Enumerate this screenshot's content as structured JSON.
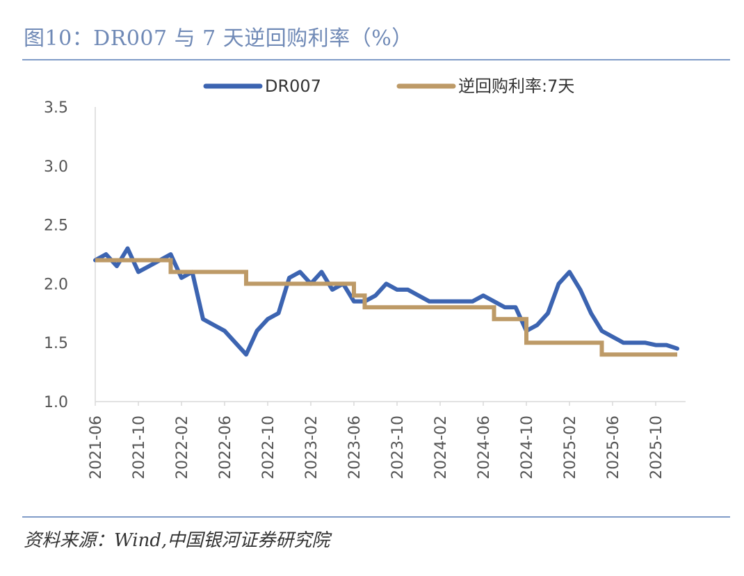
{
  "header": {
    "title": "图10：DR007 与 7 天逆回购利率（%）"
  },
  "footer": {
    "source": "资料来源：Wind,中国银河证券研究院"
  },
  "colors": {
    "dr007": "#3c64b1",
    "reverse_repo": "#bd9a67",
    "axis": "#d9d9d9",
    "rule": "#7f9bc7"
  },
  "chart_data": {
    "type": "line",
    "title": "",
    "xlabel": "",
    "ylabel": "",
    "ylim": [
      1.0,
      3.5
    ],
    "yticks": [
      "1.0",
      "1.5",
      "2.0",
      "2.5",
      "3.0",
      "3.5"
    ],
    "xticks": [
      "2021-06",
      "2021-10",
      "2022-02",
      "2022-06",
      "2022-10",
      "2023-02",
      "2023-06",
      "2023-10",
      "2024-02",
      "2024-06",
      "2024-10",
      "2025-02",
      "2025-06",
      "2025-10"
    ],
    "grid": false,
    "legend_position": "top",
    "series": [
      {
        "name": "DR007",
        "x": [
          "2021-06",
          "2021-07",
          "2021-08",
          "2021-09",
          "2021-10",
          "2021-11",
          "2021-12",
          "2022-01",
          "2022-02",
          "2022-03",
          "2022-04",
          "2022-05",
          "2022-06",
          "2022-07",
          "2022-08",
          "2022-09",
          "2022-10",
          "2022-11",
          "2022-12",
          "2023-01",
          "2023-02",
          "2023-03",
          "2023-04",
          "2023-05",
          "2023-06",
          "2023-07",
          "2023-08",
          "2023-09",
          "2023-10",
          "2023-11",
          "2023-12",
          "2024-01",
          "2024-02",
          "2024-03",
          "2024-04",
          "2024-05",
          "2024-06",
          "2024-07",
          "2024-08",
          "2024-09",
          "2024-10",
          "2024-11",
          "2024-12",
          "2025-01",
          "2025-02",
          "2025-03",
          "2025-04",
          "2025-05",
          "2025-06",
          "2025-07",
          "2025-08",
          "2025-09",
          "2025-10",
          "2025-11",
          "2025-12"
        ],
        "values": [
          2.2,
          2.25,
          2.15,
          2.3,
          2.1,
          2.15,
          2.2,
          2.25,
          2.05,
          2.1,
          1.7,
          1.65,
          1.6,
          1.5,
          1.4,
          1.6,
          1.7,
          1.75,
          2.05,
          2.1,
          2.0,
          2.1,
          1.95,
          2.0,
          1.85,
          1.85,
          1.9,
          2.0,
          1.95,
          1.95,
          1.9,
          1.85,
          1.85,
          1.85,
          1.85,
          1.85,
          1.9,
          1.85,
          1.8,
          1.8,
          1.6,
          1.65,
          1.75,
          2.0,
          2.1,
          1.95,
          1.75,
          1.6,
          1.55,
          1.5,
          1.5,
          1.5,
          1.48,
          1.48,
          1.45
        ]
      },
      {
        "name": "逆回购利率:7天",
        "x": [
          "2021-06",
          "2021-12",
          "2022-01",
          "2022-07",
          "2022-08",
          "2023-05",
          "2023-06",
          "2023-07",
          "2024-06",
          "2024-07",
          "2024-09",
          "2024-10",
          "2025-04",
          "2025-05",
          "2025-12"
        ],
        "values": [
          2.2,
          2.2,
          2.1,
          2.1,
          2.0,
          2.0,
          1.9,
          1.8,
          1.8,
          1.7,
          1.7,
          1.5,
          1.5,
          1.4,
          1.4
        ]
      }
    ]
  }
}
